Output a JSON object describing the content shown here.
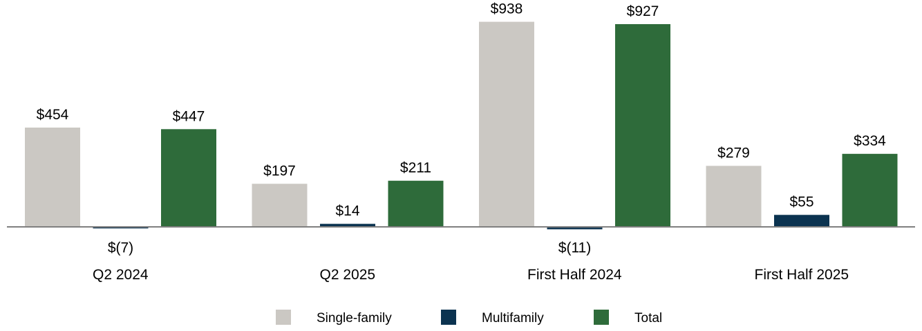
{
  "chart_data": {
    "type": "bar",
    "categories": [
      "Q2 2024",
      "Q2 2025",
      "First Half 2024",
      "First Half 2025"
    ],
    "series": [
      {
        "name": "Single-family",
        "color": "#cbc8c3",
        "values": [
          454,
          197,
          938,
          279
        ],
        "labels": [
          "$454",
          "$197",
          "$938",
          "$279"
        ]
      },
      {
        "name": "Multifamily",
        "color": "#0b3350",
        "values": [
          -7,
          14,
          -11,
          55
        ],
        "labels": [
          "$(7)",
          "$14",
          "$(11)",
          "$55"
        ]
      },
      {
        "name": "Total",
        "color": "#2e6b3a",
        "values": [
          447,
          211,
          927,
          334
        ],
        "labels": [
          "$447",
          "$211",
          "$927",
          "$334"
        ]
      }
    ],
    "title": "",
    "xlabel": "",
    "ylabel": "",
    "ylim": [
      -20,
      960
    ],
    "grid": false,
    "legend_position": "bottom-center",
    "baseline_color": "#7f7f7f"
  }
}
